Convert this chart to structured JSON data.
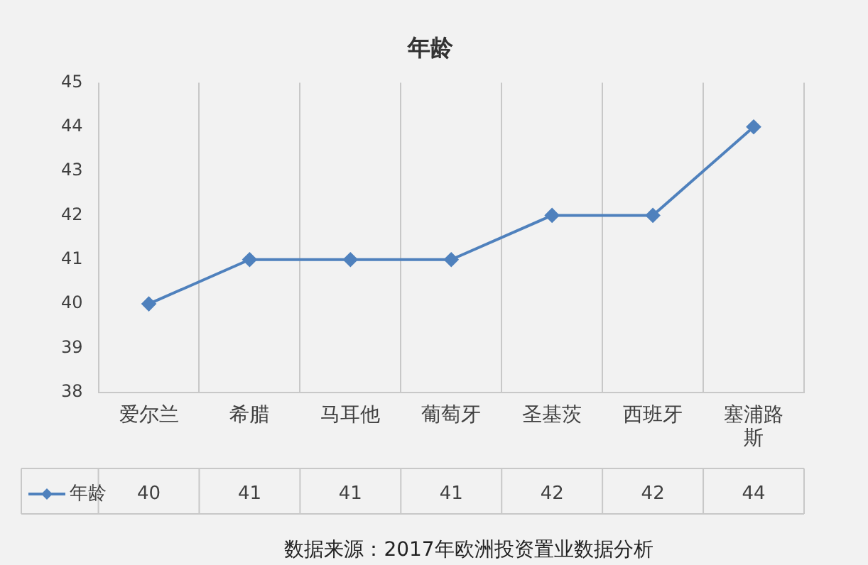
{
  "chart_data": {
    "type": "line",
    "title": "年龄",
    "categories": [
      "爱尔兰",
      "希腊",
      "马耳他",
      "葡萄牙",
      "圣基茨",
      "西班牙",
      "塞浦路斯"
    ],
    "series": [
      {
        "name": "年龄",
        "color": "#4f81bd",
        "values": [
          40,
          41,
          41,
          41,
          42,
          42,
          44
        ]
      }
    ],
    "ylim": [
      38,
      45
    ],
    "yticks": [
      38,
      39,
      40,
      41,
      42,
      43,
      44,
      45
    ],
    "grid": "x",
    "legend": "bottom left",
    "marker": "diamond",
    "line_style": "solid",
    "data_labels": true,
    "annotations": [
      "数据来源：2017年欧洲投资置业数据分析"
    ]
  }
}
